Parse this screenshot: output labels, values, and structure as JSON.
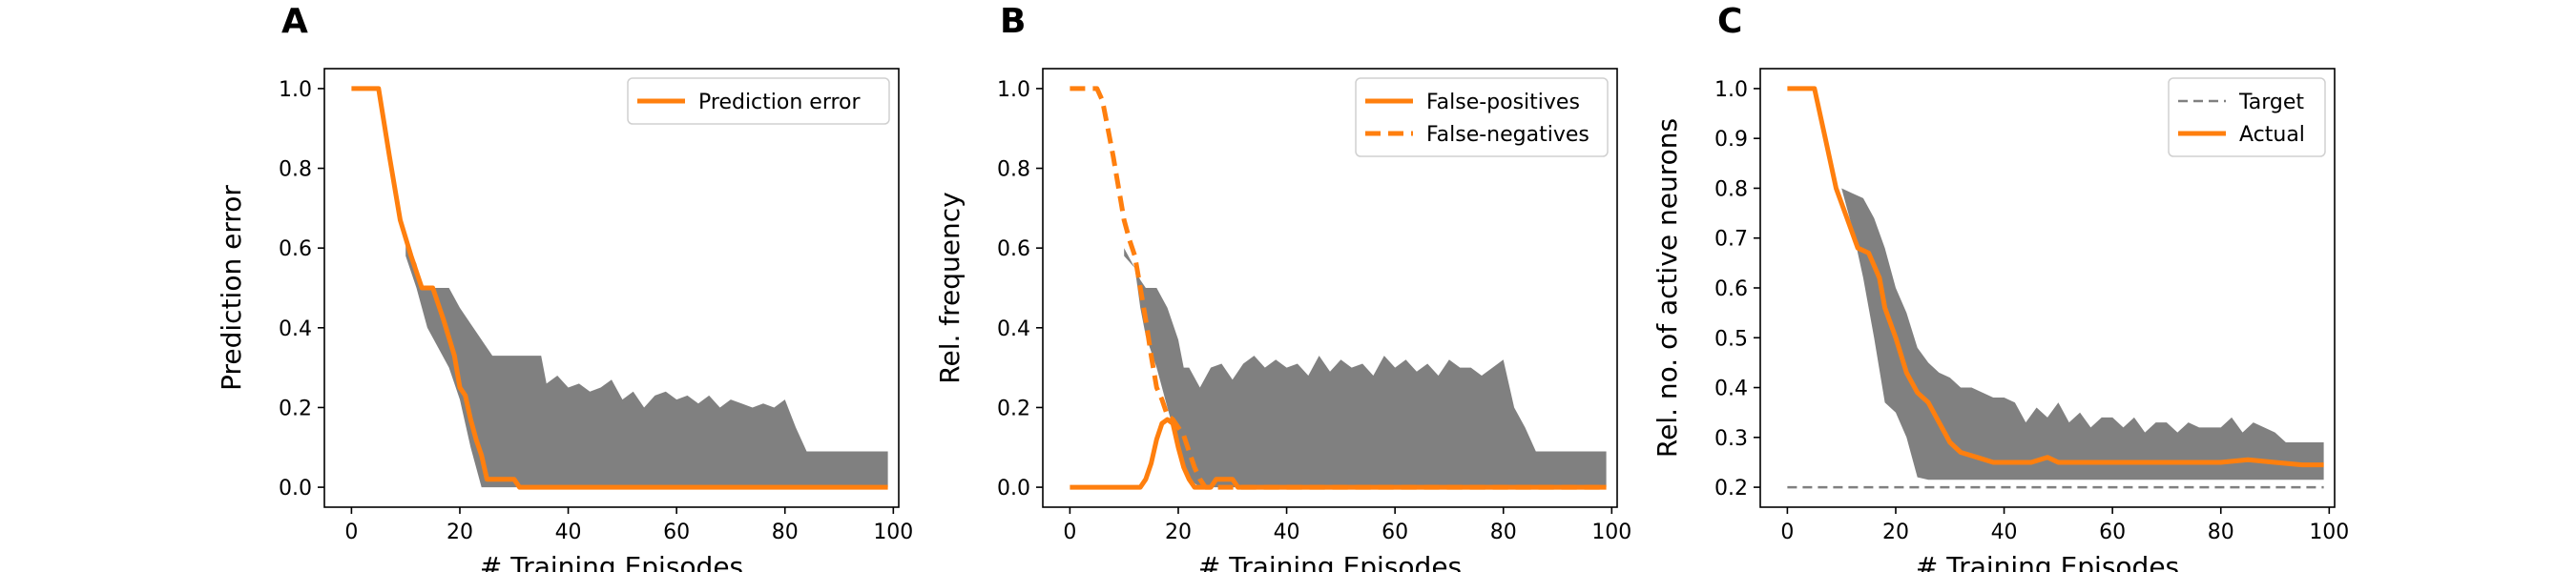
{
  "colors": {
    "actual": "#ff7f0e",
    "band": "#808080",
    "target": "#808080",
    "frame": "#000000"
  },
  "chart_data": [
    {
      "type": "line",
      "panel_letter": "A",
      "xlabel": "# Training Episodes",
      "ylabel": "Prediction error",
      "xlim": [
        -5,
        101
      ],
      "ylim": [
        -0.05,
        1.05
      ],
      "xticks": [
        0,
        20,
        40,
        60,
        80,
        100
      ],
      "yticks": [
        0.0,
        0.2,
        0.4,
        0.6,
        0.8,
        1.0
      ],
      "ytick_decimals": 1,
      "legend_position": "top-right",
      "series": [
        {
          "name": "Prediction error",
          "style": "solid",
          "x": [
            0,
            5,
            7,
            9,
            11,
            13,
            14,
            15,
            17,
            19,
            20,
            21,
            22,
            23,
            24,
            25,
            27,
            30,
            31,
            40,
            60,
            80,
            99
          ],
          "y": [
            1.0,
            1.0,
            0.83,
            0.67,
            0.58,
            0.5,
            0.5,
            0.5,
            0.42,
            0.33,
            0.25,
            0.23,
            0.17,
            0.12,
            0.08,
            0.02,
            0.02,
            0.02,
            0.0,
            0.0,
            0.0,
            0.0,
            0.0
          ]
        }
      ],
      "band": {
        "x": [
          10,
          12,
          13,
          14,
          16,
          18,
          20,
          22,
          24,
          26,
          28,
          30,
          35,
          36,
          38,
          40,
          42,
          44,
          46,
          48,
          50,
          52,
          54,
          56,
          58,
          60,
          62,
          64,
          66,
          68,
          70,
          72,
          74,
          76,
          78,
          80,
          82,
          84,
          86,
          88,
          90,
          92,
          94,
          96,
          99
        ],
        "upper": [
          0.62,
          0.56,
          0.5,
          0.5,
          0.5,
          0.5,
          0.45,
          0.41,
          0.37,
          0.33,
          0.33,
          0.33,
          0.33,
          0.26,
          0.28,
          0.25,
          0.26,
          0.24,
          0.25,
          0.27,
          0.22,
          0.24,
          0.2,
          0.23,
          0.24,
          0.22,
          0.23,
          0.21,
          0.23,
          0.2,
          0.22,
          0.21,
          0.2,
          0.21,
          0.2,
          0.22,
          0.15,
          0.09,
          0.09,
          0.09,
          0.09,
          0.09,
          0.09,
          0.09,
          0.09
        ],
        "lower": [
          0.58,
          0.5,
          0.45,
          0.4,
          0.35,
          0.3,
          0.22,
          0.1,
          0.0,
          0.0,
          0.0,
          0.0,
          0.0,
          0.0,
          0.0,
          0.0,
          0.0,
          0.0,
          0.0,
          0.0,
          0.0,
          0.0,
          0.0,
          0.0,
          0.0,
          0.0,
          0.0,
          0.0,
          0.0,
          0.0,
          0.0,
          0.0,
          0.0,
          0.0,
          0.0,
          0.0,
          0.0,
          0.0,
          0.0,
          0.0,
          0.0,
          0.0,
          0.0,
          0.0,
          0.0
        ]
      }
    },
    {
      "type": "line",
      "panel_letter": "B",
      "xlabel": "# Training Episodes",
      "ylabel": "Rel. frequency",
      "xlim": [
        -5,
        101
      ],
      "ylim": [
        -0.05,
        1.05
      ],
      "xticks": [
        0,
        20,
        40,
        60,
        80,
        100
      ],
      "yticks": [
        0.0,
        0.2,
        0.4,
        0.6,
        0.8,
        1.0
      ],
      "ytick_decimals": 1,
      "legend_position": "top-right",
      "series": [
        {
          "name": "False-positives",
          "style": "solid",
          "x": [
            0,
            13,
            14,
            15,
            16,
            17,
            18,
            19,
            20,
            21,
            22,
            23,
            24,
            26,
            27,
            28,
            30,
            31,
            40,
            60,
            80,
            99
          ],
          "y": [
            0.0,
            0.0,
            0.02,
            0.06,
            0.12,
            0.16,
            0.17,
            0.16,
            0.1,
            0.05,
            0.02,
            0.0,
            0.0,
            0.0,
            0.02,
            0.02,
            0.02,
            0.0,
            0.0,
            0.0,
            0.0,
            0.0
          ]
        },
        {
          "name": "False-negatives",
          "style": "dashed",
          "x": [
            0,
            5,
            6,
            7,
            8,
            9,
            10,
            11,
            12,
            13,
            14,
            15,
            16,
            17,
            18,
            19,
            20,
            21,
            22,
            23,
            24,
            25,
            26,
            30,
            40,
            60,
            80,
            99
          ],
          "y": [
            1.0,
            1.0,
            0.97,
            0.9,
            0.83,
            0.75,
            0.67,
            0.62,
            0.58,
            0.5,
            0.42,
            0.33,
            0.25,
            0.22,
            0.18,
            0.17,
            0.15,
            0.13,
            0.09,
            0.05,
            0.02,
            0.0,
            0.0,
            0.0,
            0.0,
            0.0,
            0.0,
            0.0
          ]
        }
      ],
      "band": {
        "x": [
          10,
          12,
          13,
          14,
          16,
          18,
          20,
          21,
          22,
          24,
          26,
          28,
          30,
          32,
          34,
          36,
          38,
          40,
          42,
          44,
          46,
          48,
          50,
          52,
          54,
          56,
          58,
          60,
          62,
          64,
          66,
          68,
          70,
          72,
          74,
          76,
          78,
          80,
          82,
          84,
          86,
          88,
          90,
          92,
          94,
          96,
          99
        ],
        "upper": [
          0.6,
          0.55,
          0.52,
          0.5,
          0.5,
          0.45,
          0.37,
          0.3,
          0.3,
          0.25,
          0.3,
          0.31,
          0.27,
          0.31,
          0.33,
          0.3,
          0.32,
          0.3,
          0.31,
          0.28,
          0.33,
          0.29,
          0.32,
          0.3,
          0.31,
          0.28,
          0.33,
          0.3,
          0.32,
          0.29,
          0.31,
          0.28,
          0.32,
          0.3,
          0.3,
          0.28,
          0.3,
          0.32,
          0.2,
          0.15,
          0.09,
          0.09,
          0.09,
          0.09,
          0.09,
          0.09,
          0.09
        ],
        "lower": [
          0.58,
          0.55,
          0.45,
          0.38,
          0.3,
          0.2,
          0.1,
          0.05,
          0.02,
          0.0,
          0.0,
          0.0,
          0.0,
          0.0,
          0.0,
          0.0,
          0.0,
          0.0,
          0.0,
          0.0,
          0.0,
          0.0,
          0.0,
          0.0,
          0.0,
          0.0,
          0.0,
          0.0,
          0.0,
          0.0,
          0.0,
          0.0,
          0.0,
          0.0,
          0.0,
          0.0,
          0.0,
          0.0,
          0.0,
          0.0,
          0.0,
          0.0,
          0.0,
          0.0,
          0.0,
          0.0,
          0.0
        ]
      }
    },
    {
      "type": "line",
      "panel_letter": "C",
      "xlabel": "# Training Episodes",
      "ylabel": "Rel. no. of active neurons",
      "xlim": [
        -5,
        101
      ],
      "ylim": [
        0.16,
        1.04
      ],
      "xticks": [
        0,
        20,
        40,
        60,
        80,
        100
      ],
      "yticks": [
        0.2,
        0.3,
        0.4,
        0.5,
        0.6,
        0.7,
        0.8,
        0.9,
        1.0
      ],
      "ytick_decimals": 1,
      "legend_position": "top-right",
      "series": [
        {
          "name": "Target",
          "style": "dashed-thin",
          "x": [
            0,
            99
          ],
          "y": [
            0.2,
            0.2
          ]
        },
        {
          "name": "Actual",
          "style": "solid",
          "x": [
            0,
            5,
            7,
            9,
            11,
            13,
            15,
            17,
            18,
            20,
            22,
            24,
            26,
            28,
            30,
            32,
            35,
            38,
            40,
            45,
            48,
            50,
            55,
            60,
            70,
            80,
            85,
            90,
            95,
            99
          ],
          "y": [
            1.0,
            1.0,
            0.9,
            0.8,
            0.74,
            0.68,
            0.67,
            0.62,
            0.56,
            0.5,
            0.43,
            0.39,
            0.37,
            0.33,
            0.29,
            0.27,
            0.26,
            0.25,
            0.25,
            0.25,
            0.26,
            0.25,
            0.25,
            0.25,
            0.25,
            0.25,
            0.255,
            0.25,
            0.245,
            0.245
          ]
        }
      ],
      "band": {
        "x": [
          10,
          12,
          14,
          16,
          18,
          20,
          22,
          24,
          26,
          28,
          30,
          32,
          34,
          36,
          38,
          40,
          42,
          44,
          46,
          48,
          50,
          52,
          54,
          56,
          58,
          60,
          62,
          64,
          66,
          68,
          70,
          72,
          74,
          76,
          78,
          80,
          82,
          84,
          86,
          88,
          90,
          92,
          94,
          96,
          99
        ],
        "upper": [
          0.8,
          0.79,
          0.78,
          0.74,
          0.68,
          0.6,
          0.55,
          0.48,
          0.45,
          0.43,
          0.42,
          0.4,
          0.4,
          0.39,
          0.38,
          0.38,
          0.37,
          0.33,
          0.36,
          0.34,
          0.37,
          0.33,
          0.35,
          0.32,
          0.34,
          0.34,
          0.32,
          0.34,
          0.31,
          0.33,
          0.33,
          0.31,
          0.33,
          0.32,
          0.32,
          0.32,
          0.34,
          0.31,
          0.33,
          0.32,
          0.31,
          0.29,
          0.29,
          0.29,
          0.29
        ],
        "lower": [
          0.8,
          0.72,
          0.62,
          0.5,
          0.37,
          0.35,
          0.3,
          0.22,
          0.215,
          0.215,
          0.215,
          0.215,
          0.215,
          0.215,
          0.215,
          0.215,
          0.215,
          0.215,
          0.215,
          0.215,
          0.215,
          0.215,
          0.215,
          0.215,
          0.215,
          0.215,
          0.215,
          0.215,
          0.215,
          0.215,
          0.215,
          0.215,
          0.215,
          0.215,
          0.215,
          0.215,
          0.215,
          0.215,
          0.215,
          0.215,
          0.215,
          0.215,
          0.215,
          0.215,
          0.215
        ]
      }
    }
  ]
}
